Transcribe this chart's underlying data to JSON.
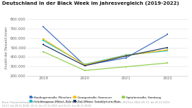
{
  "title": "Deutschland in der Black Week im Jahresvergleich (2019-2022)",
  "ylabel": "Anzahl der Passant:innen",
  "years": [
    2019,
    2020,
    2021,
    2022
  ],
  "series": [
    {
      "label": "Kaufingerstraße, München",
      "values": [
        720000,
        310000,
        390000,
        640000
      ],
      "color": "#4472C4",
      "marker": "s"
    },
    {
      "label": "Schildergasse (Mitte), Köln",
      "values": [
        575000,
        320000,
        420000,
        465000
      ],
      "color": "#17BECF",
      "marker": "s"
    },
    {
      "label": "Georgsstraße, Hannover",
      "values": [
        590000,
        315000,
        415000,
        475000
      ],
      "color": "#FFC000",
      "marker": "s"
    },
    {
      "label": "Zeil (Mitte), Frankfurt am Main",
      "values": [
        530000,
        305000,
        410000,
        500000
      ],
      "color": "#1F3864",
      "marker": "s"
    },
    {
      "label": "Spitalerstraße, Hamburg",
      "values": [
        455000,
        255000,
        295000,
        335000
      ],
      "color": "#92D050",
      "marker": "s"
    }
  ],
  "ylim": [
    200000,
    800000
  ],
  "yticks": [
    200000,
    300000,
    400000,
    500000,
    600000,
    700000,
    800000
  ],
  "note": "Basis: Passantenfrequenz in den Einkaufsstraßen in der Black Week (exkl. Sonntag) für die Jahre 2019 bis 2022 (25.11. bis 30.11.2019;\n23.11. bis 28.11.2020; 22.11. bis 27.11.2021 und 21.11. bis 26.11.2022)",
  "background_color": "#FFFFFF",
  "grid_color": "#DDDDDD"
}
